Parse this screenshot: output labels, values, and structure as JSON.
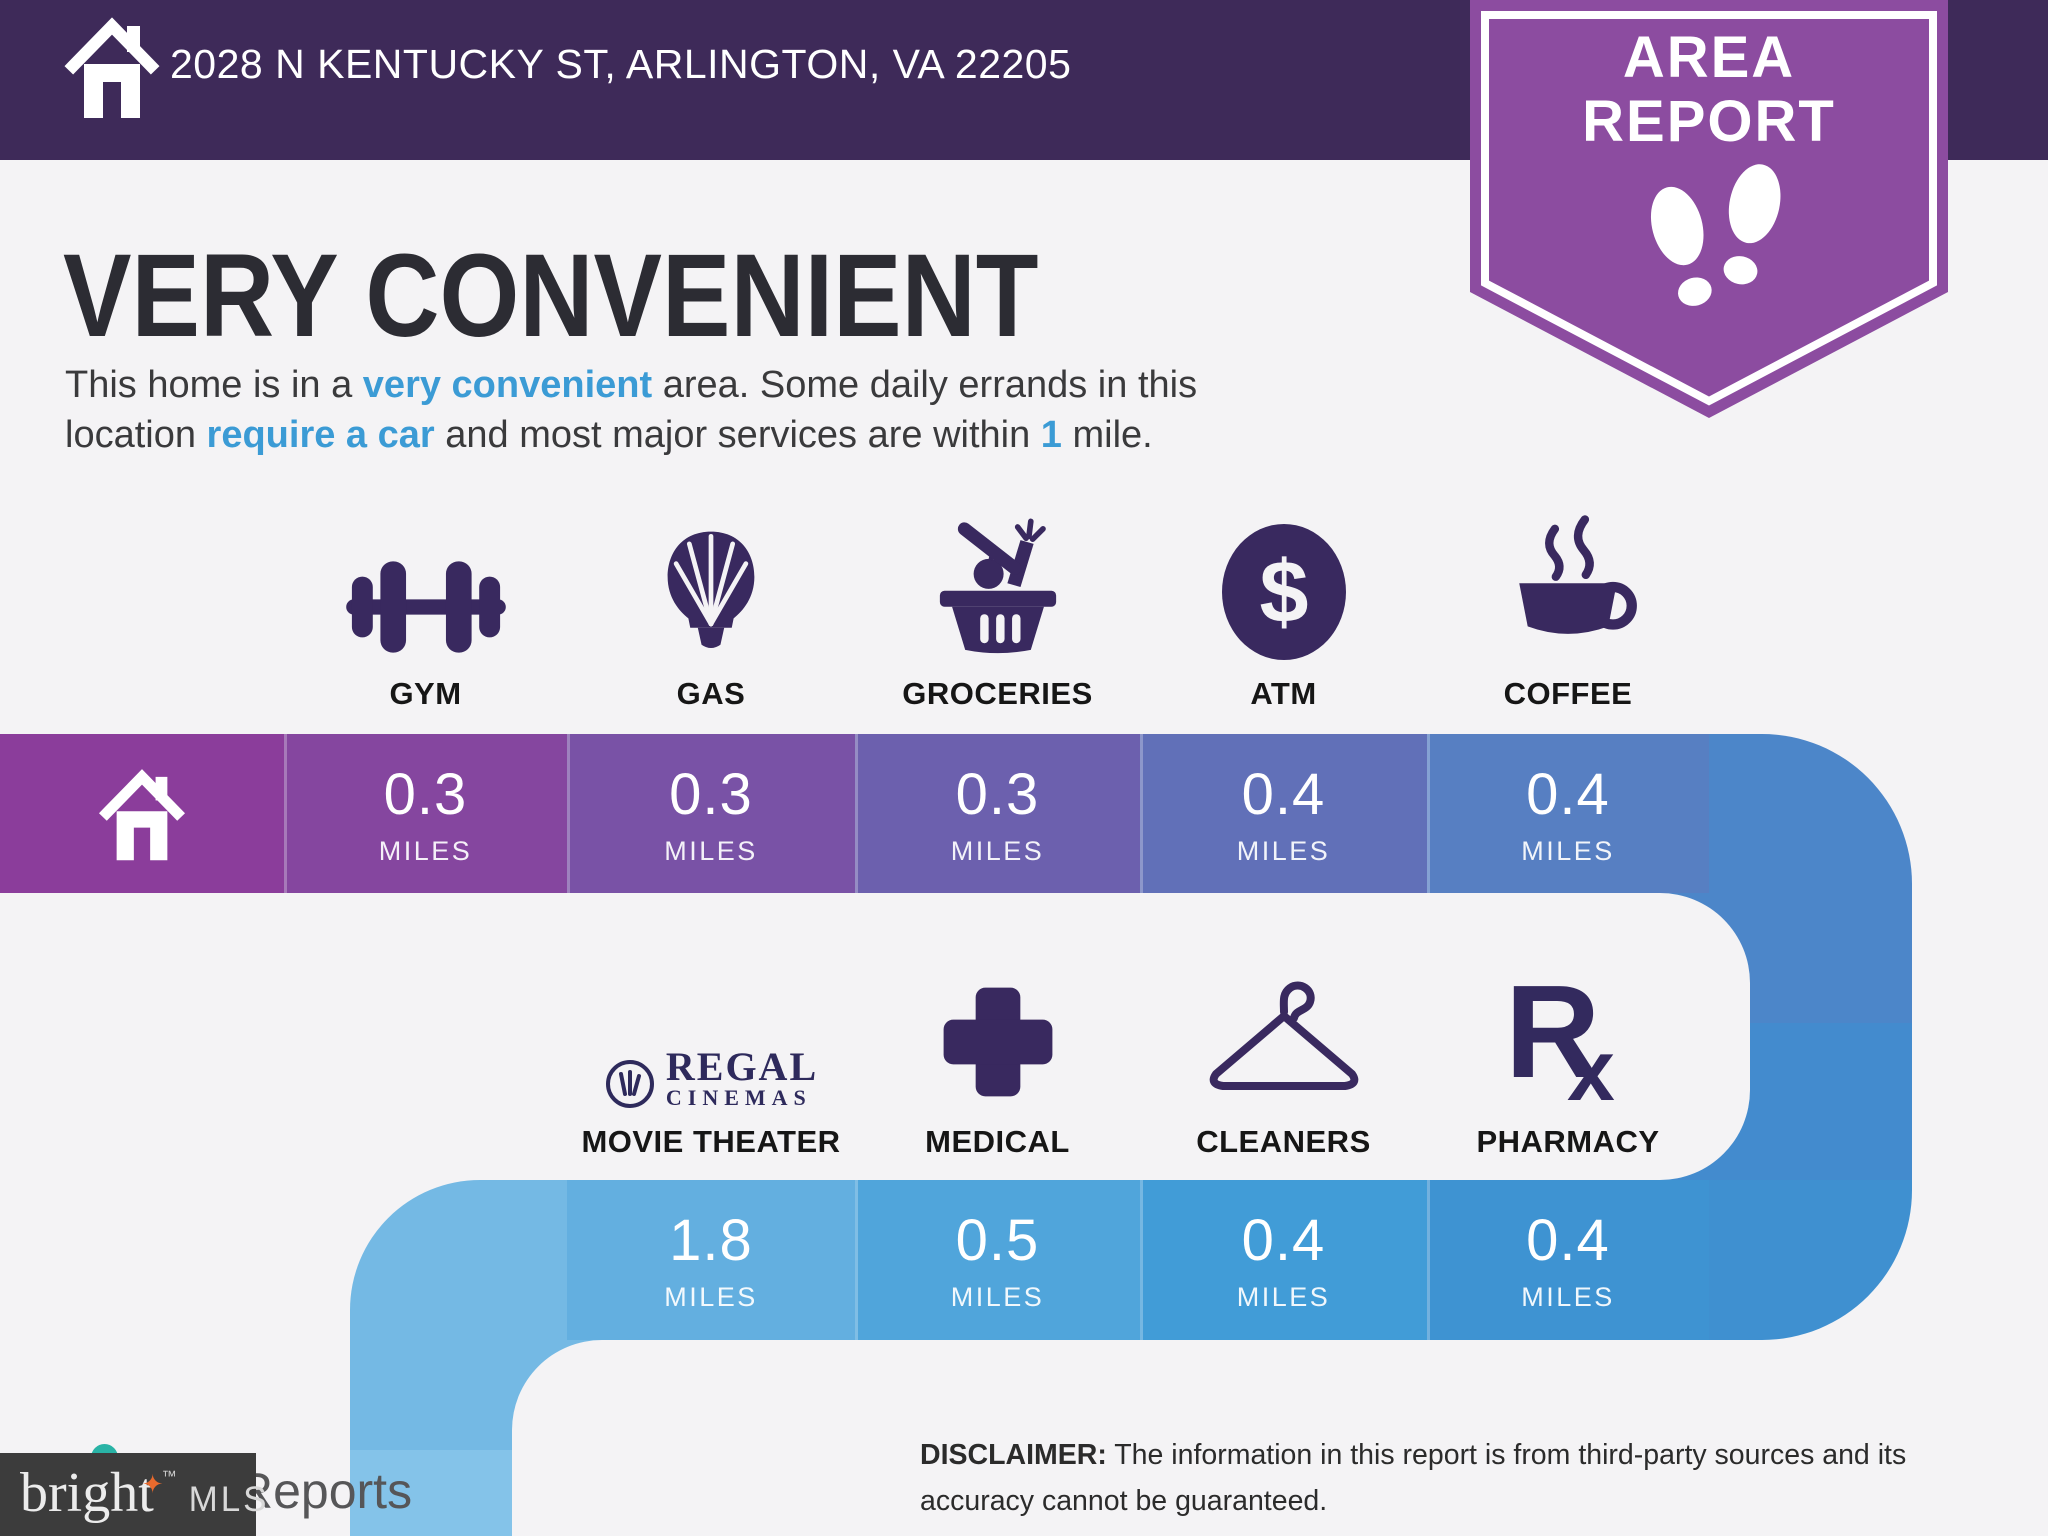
{
  "header": {
    "address": "2028 N KENTUCKY ST, ARLINGTON, VA 22205"
  },
  "badge": {
    "line1": "AREA",
    "line2": "REPORT"
  },
  "title": "VERY CONVENIENT",
  "description": {
    "segments": [
      {
        "text": "This home is in a "
      },
      {
        "text": "very convenient",
        "highlight": true
      },
      {
        "text": " area. Some daily errands in this"
      },
      {
        "br": true
      },
      {
        "text": "location "
      },
      {
        "text": "require a car",
        "highlight": true
      },
      {
        "text": " and most major services are within "
      },
      {
        "text": "1",
        "highlight": true
      },
      {
        "text": " mile."
      }
    ]
  },
  "row1": {
    "items": [
      {
        "id": "gym",
        "label": "GYM",
        "value": "0.3",
        "unit": "MILES"
      },
      {
        "id": "gas",
        "label": "GAS",
        "value": "0.3",
        "unit": "MILES"
      },
      {
        "id": "groceries",
        "label": "GROCERIES",
        "value": "0.3",
        "unit": "MILES"
      },
      {
        "id": "atm",
        "label": "ATM",
        "value": "0.4",
        "unit": "MILES",
        "icon_char": "$"
      },
      {
        "id": "coffee",
        "label": "COFFEE",
        "value": "0.4",
        "unit": "MILES"
      }
    ]
  },
  "row2": {
    "items": [
      {
        "id": "movie-theater",
        "label": "MOVIE THEATER",
        "value": "1.8",
        "unit": "MILES",
        "logo_name": "REGAL",
        "logo_sub": "CINEMAS"
      },
      {
        "id": "medical",
        "label": "MEDICAL",
        "value": "0.5",
        "unit": "MILES"
      },
      {
        "id": "cleaners",
        "label": "CLEANERS",
        "value": "0.4",
        "unit": "MILES"
      },
      {
        "id": "pharmacy",
        "label": "PHARMACY",
        "value": "0.4",
        "unit": "MILES",
        "icon_main": "R",
        "icon_sub": "x"
      }
    ]
  },
  "disclaimer": {
    "label": "DISCLAIMER:",
    "text": " The information in this report is from third-party sources and its accuracy cannot be guaranteed."
  },
  "footer": {
    "watermark": "Reports",
    "brand_word": "bright",
    "brand_star": "✦",
    "brand_tm": "™",
    "brand_suffix": "MLS"
  },
  "palette": {
    "header_bg": "#3E2A59",
    "badge_purple": "#8C4CA0",
    "page_bg": "#F4F3F5",
    "accent_blue": "#3B9BD5",
    "icon_purple": "#39295F",
    "cell_home": "#8B3D9B",
    "cell_gym": "#85469F",
    "cell_gas": "#7952A6",
    "cell_groceries": "#6C60AE",
    "cell_atm": "#6170B8",
    "cell_coffee": "#577FC2",
    "curve_top_right": "#4C86C9",
    "band_lower": "#438BCE",
    "curve_bottom_right": "#3F90D0",
    "cell_pharmacy": "#3E93D2",
    "cell_cleaners": "#419CD7",
    "cell_medical": "#50A5DB",
    "cell_movie": "#63AFE0",
    "curve_left": "#74B9E4",
    "descender_lower": "#84C3E9",
    "brightmls_box": "#3C3C3C",
    "watermark_teal": "#29B3A6"
  }
}
